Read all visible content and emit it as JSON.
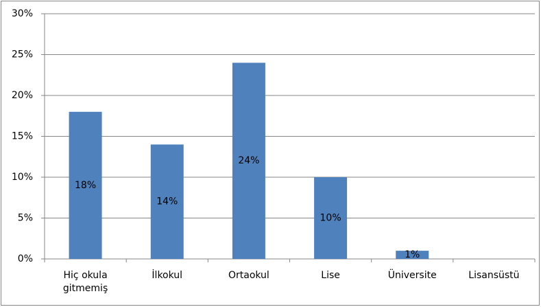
{
  "chart_data": {
    "type": "bar",
    "categories": [
      "Hiç okula gitmemiş",
      "İlkokul",
      "Ortaokul",
      "Lise",
      "Üniversite",
      "Lisansüstü"
    ],
    "values": [
      18,
      14,
      24,
      10,
      1,
      0
    ],
    "value_labels": [
      "18%",
      "14%",
      "24%",
      "10%",
      "1%",
      null
    ],
    "color": "#4f81bd",
    "ylim": [
      0,
      30
    ],
    "yticks": [
      {
        "value": 0,
        "label": "0%"
      },
      {
        "value": 5,
        "label": "5%"
      },
      {
        "value": 10,
        "label": "10%"
      },
      {
        "value": 15,
        "label": "15%"
      },
      {
        "value": 20,
        "label": "20%"
      },
      {
        "value": 25,
        "label": "25%"
      },
      {
        "value": 30,
        "label": "30%"
      }
    ],
    "grid": true
  }
}
